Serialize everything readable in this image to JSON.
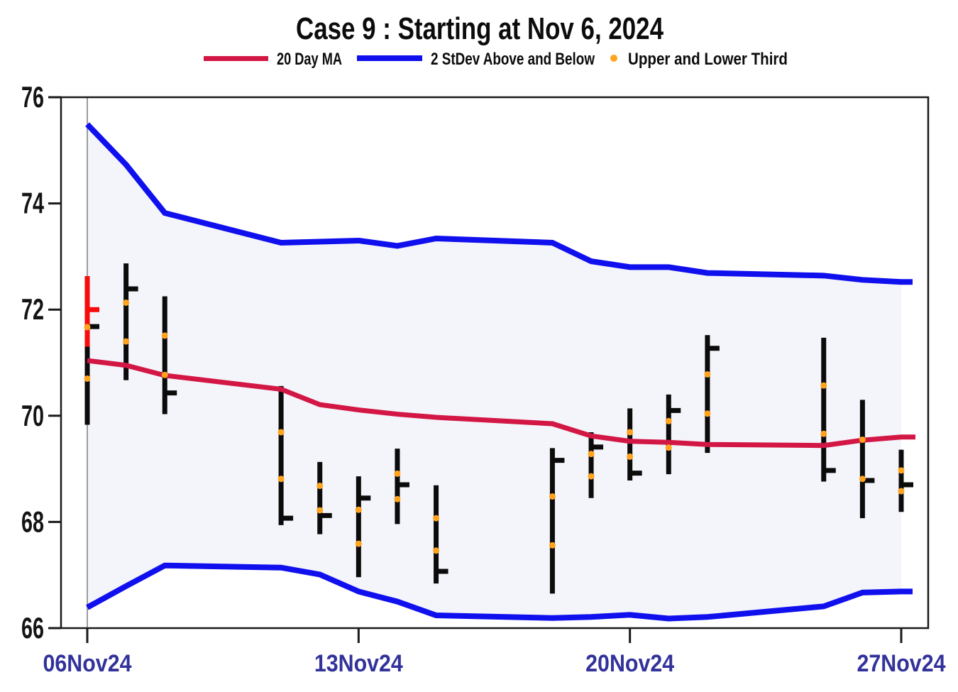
{
  "chart_data": {
    "type": "hlc-bars-with-bands",
    "title": "Case 9 :  Starting at  Nov 6, 2024",
    "legend": [
      {
        "label": "20 Day MA",
        "marker": "line",
        "color": "#d31745"
      },
      {
        "label": "2 StDev Above and Below",
        "marker": "line",
        "color": "#1010ee"
      },
      {
        "label": "Upper  and Lower Third",
        "marker": "dot",
        "color": "#ffa41c"
      }
    ],
    "ylim": [
      66,
      76
    ],
    "yticks": [
      76,
      74,
      72,
      70,
      68,
      66
    ],
    "xticks": [
      {
        "label": "06Nov24",
        "day": 0
      },
      {
        "label": "13Nov24",
        "day": 7
      },
      {
        "label": "20Nov24",
        "day": 14
      },
      {
        "label": "27Nov24",
        "day": 21
      }
    ],
    "days": [
      0,
      1,
      2,
      5,
      6,
      7,
      8,
      9,
      12,
      13,
      14,
      15,
      16,
      19,
      20,
      21
    ],
    "bars": [
      {
        "date": "06Nov24",
        "day": 0,
        "high": 72.63,
        "low": 69.83,
        "close": 71.68,
        "thirds": [
          70.7,
          71.67
        ]
      },
      {
        "date": "07Nov24",
        "day": 1,
        "high": 72.87,
        "low": 70.67,
        "close": 72.39,
        "thirds": [
          71.4,
          72.13
        ]
      },
      {
        "date": "08Nov24",
        "day": 2,
        "high": 72.25,
        "low": 70.03,
        "close": 70.43,
        "thirds": [
          70.77,
          71.51
        ]
      },
      {
        "date": "11Nov24",
        "day": 5,
        "high": 70.56,
        "low": 67.94,
        "close": 68.07,
        "thirds": [
          68.81,
          69.69
        ]
      },
      {
        "date": "12Nov24",
        "day": 6,
        "high": 69.13,
        "low": 67.77,
        "close": 68.12,
        "thirds": [
          68.22,
          68.68
        ]
      },
      {
        "date": "13Nov24",
        "day": 7,
        "high": 68.86,
        "low": 66.96,
        "close": 68.45,
        "thirds": [
          67.59,
          68.23
        ]
      },
      {
        "date": "14Nov24",
        "day": 8,
        "high": 69.38,
        "low": 67.96,
        "close": 68.7,
        "thirds": [
          68.43,
          68.91
        ]
      },
      {
        "date": "15Nov24",
        "day": 9,
        "high": 68.69,
        "low": 66.84,
        "close": 67.07,
        "thirds": [
          67.46,
          68.07
        ]
      },
      {
        "date": "18Nov24",
        "day": 12,
        "high": 69.39,
        "low": 66.65,
        "close": 69.16,
        "thirds": [
          67.56,
          68.48
        ]
      },
      {
        "date": "19Nov24",
        "day": 13,
        "high": 69.69,
        "low": 68.45,
        "close": 69.41,
        "thirds": [
          68.86,
          69.28
        ]
      },
      {
        "date": "20Nov24",
        "day": 14,
        "high": 70.14,
        "low": 68.78,
        "close": 68.92,
        "thirds": [
          69.23,
          69.69
        ]
      },
      {
        "date": "21Nov24",
        "day": 15,
        "high": 70.4,
        "low": 68.9,
        "close": 70.1,
        "thirds": [
          69.4,
          69.9
        ]
      },
      {
        "date": "22Nov24",
        "day": 16,
        "high": 71.52,
        "low": 69.3,
        "close": 71.27,
        "thirds": [
          70.04,
          70.78
        ]
      },
      {
        "date": "25Nov24",
        "day": 19,
        "high": 71.47,
        "low": 68.76,
        "close": 68.97,
        "thirds": [
          69.66,
          70.57
        ]
      },
      {
        "date": "26Nov24",
        "day": 20,
        "high": 70.3,
        "low": 68.07,
        "close": 68.78,
        "thirds": [
          68.81,
          69.55
        ]
      },
      {
        "date": "27Nov24",
        "day": 21,
        "high": 69.36,
        "low": 68.19,
        "close": 68.7,
        "thirds": [
          68.58,
          68.97
        ]
      }
    ],
    "start_bar_overlay": {
      "date": "06Nov24",
      "day": 0,
      "top": 72.63,
      "bottom": 71.3,
      "close_tick": 72.0
    },
    "series": {
      "ma20": [
        71.04,
        70.95,
        70.76,
        70.5,
        70.21,
        70.11,
        70.03,
        69.97,
        69.85,
        69.62,
        69.52,
        69.5,
        69.46,
        69.44,
        69.54,
        69.6
      ],
      "upper_band": [
        75.49,
        74.73,
        73.82,
        73.26,
        73.28,
        73.3,
        73.2,
        73.34,
        73.26,
        72.91,
        72.8,
        72.8,
        72.69,
        72.64,
        72.56,
        72.52
      ],
      "lower_band": [
        66.39,
        66.79,
        67.18,
        67.14,
        67.01,
        66.69,
        66.5,
        66.24,
        66.19,
        66.21,
        66.25,
        66.18,
        66.21,
        66.41,
        66.67,
        66.69
      ]
    },
    "refline_day": 0
  },
  "colors": {
    "ma_line": "#d31745",
    "band_line": "#1010ee",
    "band_fill": "#f4f4fb",
    "bar": "#0b0b0b",
    "highlight_bar": "#fa0b0b",
    "third_dot": "#ffa41c",
    "x_label": "#32329b",
    "y_label": "#141414",
    "refline": "#9c9c9c",
    "frame": "#1a1a1a",
    "title_text": "#0c0c0c"
  }
}
